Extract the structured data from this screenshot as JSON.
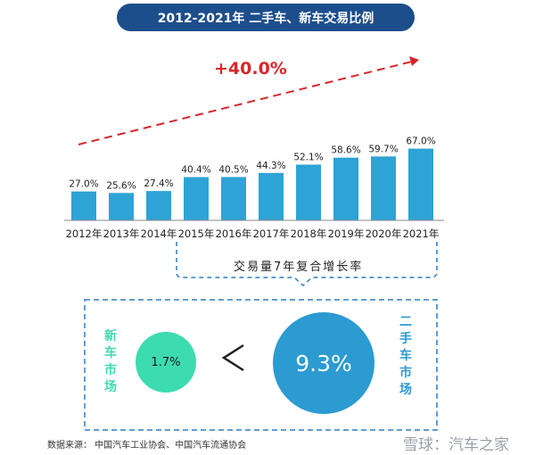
{
  "title": "2012-2021年 二手车、新车交易比例",
  "chart_data": {
    "type": "bar",
    "categories": [
      "2012年",
      "2013年",
      "2014年",
      "2015年",
      "2016年",
      "2017年",
      "2018年",
      "2019年",
      "2020年",
      "2021年"
    ],
    "values": [
      27.0,
      25.6,
      27.4,
      40.4,
      40.5,
      44.3,
      52.1,
      58.6,
      59.7,
      67.0
    ],
    "value_labels": [
      "27.0%",
      "25.6%",
      "27.4%",
      "40.4%",
      "40.5%",
      "44.3%",
      "52.1%",
      "58.6%",
      "59.7%",
      "67.0%"
    ],
    "ylim": [
      0,
      70
    ],
    "bar_color": "#2ea3d5",
    "growth_label": "+40.0%",
    "growth_color": "#d7262b"
  },
  "cagr": {
    "bracket_label": "交易量7年复合增长率",
    "new_car_label": "新车市场",
    "new_car_value": "1.7%",
    "new_car_color": "#3ddbb0",
    "comparator": "<",
    "used_car_label": "二手车市场",
    "used_car_value": "9.3%",
    "used_car_color": "#2c9bd1",
    "box_color": "#2f7fc1"
  },
  "source": "数据来源： 中国汽车工业协会、中国汽车流通协会",
  "watermark": "雪球：汽车之家"
}
